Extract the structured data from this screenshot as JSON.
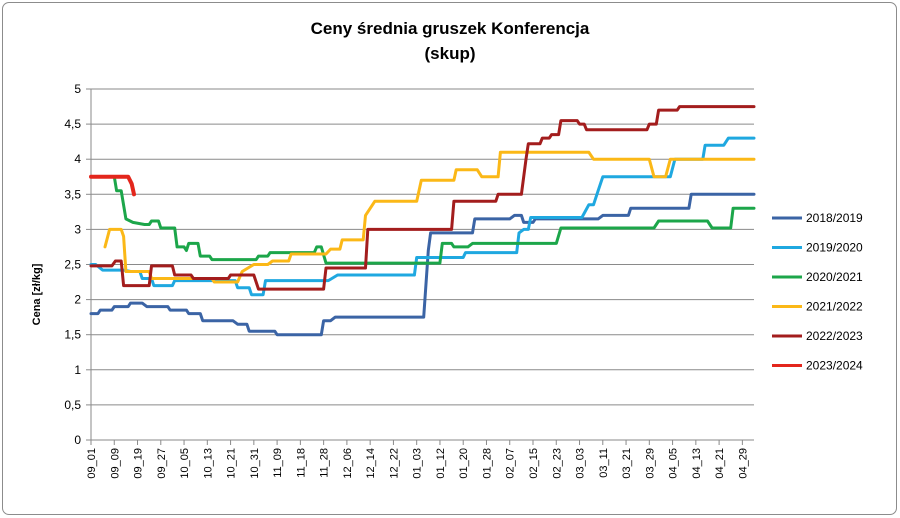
{
  "chart_data": {
    "type": "line",
    "title": "Ceny średnia gruszek Konferencja",
    "subtitle": "(skup)",
    "xlabel": "",
    "ylabel": "Cena [zł/kg]",
    "ylim": [
      0,
      5
    ],
    "y_ticks": [
      "0",
      "0,5",
      "1",
      "1,5",
      "2",
      "2,5",
      "3",
      "3,5",
      "4",
      "4,5",
      "5"
    ],
    "grid": "horizontal",
    "legend_position": "right",
    "categories": [
      "09_01",
      "09_09",
      "09_19",
      "09_27",
      "10_05",
      "10_13",
      "10_21",
      "10_31",
      "11_09",
      "11_18",
      "11_28",
      "12_06",
      "12_14",
      "12_22",
      "01_03",
      "01_12",
      "01_20",
      "01_28",
      "02_07",
      "02_15",
      "02_23",
      "03_03",
      "03_11",
      "03_21",
      "03_29",
      "04_05",
      "04_13",
      "04_21",
      "04_29"
    ],
    "series": [
      {
        "name": "2018/2019",
        "color": "#3b64a5",
        "width": 3,
        "points": [
          [
            0,
            1.8
          ],
          [
            0.3,
            1.8
          ],
          [
            0.4,
            1.85
          ],
          [
            0.9,
            1.85
          ],
          [
            1,
            1.9
          ],
          [
            1.6,
            1.9
          ],
          [
            1.7,
            1.95
          ],
          [
            2.2,
            1.95
          ],
          [
            2.4,
            1.9
          ],
          [
            3.3,
            1.9
          ],
          [
            3.4,
            1.85
          ],
          [
            4.1,
            1.85
          ],
          [
            4.2,
            1.8
          ],
          [
            4.7,
            1.8
          ],
          [
            4.8,
            1.7
          ],
          [
            6.1,
            1.7
          ],
          [
            6.3,
            1.65
          ],
          [
            6.7,
            1.65
          ],
          [
            6.8,
            1.55
          ],
          [
            7.9,
            1.55
          ],
          [
            8,
            1.5
          ],
          [
            9.9,
            1.5
          ],
          [
            10,
            1.7
          ],
          [
            10.3,
            1.7
          ],
          [
            10.5,
            1.75
          ],
          [
            14.3,
            1.75
          ],
          [
            14.5,
            2.7
          ],
          [
            14.6,
            2.95
          ],
          [
            16.4,
            2.95
          ],
          [
            16.5,
            3.15
          ],
          [
            18,
            3.15
          ],
          [
            18.2,
            3.2
          ],
          [
            18.5,
            3.2
          ],
          [
            18.6,
            3.1
          ],
          [
            19,
            3.1
          ],
          [
            19.1,
            3.15
          ],
          [
            21.8,
            3.15
          ],
          [
            22,
            3.2
          ],
          [
            23.1,
            3.2
          ],
          [
            23.2,
            3.3
          ],
          [
            25.7,
            3.3
          ],
          [
            25.8,
            3.5
          ],
          [
            28.5,
            3.5
          ]
        ]
      },
      {
        "name": "2019/2020",
        "color": "#1fa8e0",
        "width": 3,
        "points": [
          [
            0,
            2.5
          ],
          [
            0.2,
            2.5
          ],
          [
            0.5,
            2.42
          ],
          [
            1.4,
            2.42
          ],
          [
            1.7,
            2.4
          ],
          [
            2.1,
            2.4
          ],
          [
            2.2,
            2.3
          ],
          [
            2.6,
            2.3
          ],
          [
            2.7,
            2.2
          ],
          [
            3.5,
            2.2
          ],
          [
            3.6,
            2.27
          ],
          [
            6.2,
            2.27
          ],
          [
            6.3,
            2.17
          ],
          [
            6.8,
            2.17
          ],
          [
            6.9,
            2.07
          ],
          [
            7.4,
            2.07
          ],
          [
            7.5,
            2.27
          ],
          [
            10.2,
            2.27
          ],
          [
            10.6,
            2.35
          ],
          [
            13.9,
            2.35
          ],
          [
            14,
            2.6
          ],
          [
            16,
            2.6
          ],
          [
            16.1,
            2.67
          ],
          [
            18.3,
            2.67
          ],
          [
            18.4,
            2.95
          ],
          [
            18.6,
            3
          ],
          [
            18.8,
            3
          ],
          [
            18.9,
            3.17
          ],
          [
            21.1,
            3.17
          ],
          [
            21.4,
            3.35
          ],
          [
            21.6,
            3.35
          ],
          [
            21.8,
            3.55
          ],
          [
            22,
            3.75
          ],
          [
            24.9,
            3.75
          ],
          [
            25.1,
            4
          ],
          [
            26.3,
            4
          ],
          [
            26.4,
            4.2
          ],
          [
            27.2,
            4.2
          ],
          [
            27.4,
            4.3
          ],
          [
            28.5,
            4.3
          ]
        ]
      },
      {
        "name": "2020/2021",
        "color": "#1ca64a",
        "width": 3,
        "points": [
          [
            1,
            3.75
          ],
          [
            1.1,
            3.55
          ],
          [
            1.3,
            3.55
          ],
          [
            1.5,
            3.15
          ],
          [
            1.8,
            3.1
          ],
          [
            2.3,
            3.07
          ],
          [
            2.5,
            3.07
          ],
          [
            2.6,
            3.12
          ],
          [
            2.9,
            3.12
          ],
          [
            3,
            3.02
          ],
          [
            3.6,
            3.02
          ],
          [
            3.7,
            2.75
          ],
          [
            4,
            2.75
          ],
          [
            4.1,
            2.7
          ],
          [
            4.2,
            2.8
          ],
          [
            4.6,
            2.8
          ],
          [
            4.7,
            2.62
          ],
          [
            5.1,
            2.62
          ],
          [
            5.2,
            2.57
          ],
          [
            7.1,
            2.57
          ],
          [
            7.2,
            2.62
          ],
          [
            7.6,
            2.62
          ],
          [
            7.7,
            2.67
          ],
          [
            9.6,
            2.67
          ],
          [
            9.7,
            2.75
          ],
          [
            9.9,
            2.75
          ],
          [
            10.1,
            2.52
          ],
          [
            15,
            2.52
          ],
          [
            15.1,
            2.8
          ],
          [
            15.5,
            2.8
          ],
          [
            15.6,
            2.75
          ],
          [
            16.2,
            2.75
          ],
          [
            16.4,
            2.8
          ],
          [
            20,
            2.8
          ],
          [
            20.2,
            3.02
          ],
          [
            24.2,
            3.02
          ],
          [
            24.4,
            3.12
          ],
          [
            26.5,
            3.12
          ],
          [
            26.7,
            3.02
          ],
          [
            27.5,
            3.02
          ],
          [
            27.6,
            3.3
          ],
          [
            28.5,
            3.3
          ]
        ]
      },
      {
        "name": "2021/2022",
        "color": "#fbb817",
        "width": 3,
        "points": [
          [
            0.6,
            2.75
          ],
          [
            0.8,
            3
          ],
          [
            1.3,
            3
          ],
          [
            1.4,
            2.9
          ],
          [
            1.5,
            2.4
          ],
          [
            2.5,
            2.4
          ],
          [
            2.6,
            2.3
          ],
          [
            5.2,
            2.3
          ],
          [
            5.3,
            2.25
          ],
          [
            6.3,
            2.25
          ],
          [
            6.5,
            2.4
          ],
          [
            7,
            2.5
          ],
          [
            7.6,
            2.5
          ],
          [
            7.8,
            2.55
          ],
          [
            8.5,
            2.55
          ],
          [
            8.6,
            2.65
          ],
          [
            10.1,
            2.65
          ],
          [
            10.3,
            2.72
          ],
          [
            10.7,
            2.72
          ],
          [
            10.8,
            2.85
          ],
          [
            11.7,
            2.85
          ],
          [
            11.8,
            3.2
          ],
          [
            12,
            3.3
          ],
          [
            12.2,
            3.4
          ],
          [
            14,
            3.4
          ],
          [
            14.2,
            3.7
          ],
          [
            15.6,
            3.7
          ],
          [
            15.7,
            3.85
          ],
          [
            16.6,
            3.85
          ],
          [
            16.8,
            3.75
          ],
          [
            17.5,
            3.75
          ],
          [
            17.6,
            4.1
          ],
          [
            21.4,
            4.1
          ],
          [
            21.6,
            4
          ],
          [
            24,
            4
          ],
          [
            24.2,
            3.75
          ],
          [
            24.7,
            3.75
          ],
          [
            24.9,
            4
          ],
          [
            28.5,
            4
          ]
        ]
      },
      {
        "name": "2022/2023",
        "color": "#a31d1d",
        "width": 3,
        "points": [
          [
            0,
            2.48
          ],
          [
            0.9,
            2.48
          ],
          [
            1.05,
            2.55
          ],
          [
            1.3,
            2.55
          ],
          [
            1.4,
            2.2
          ],
          [
            2.5,
            2.2
          ],
          [
            2.6,
            2.48
          ],
          [
            3.5,
            2.48
          ],
          [
            3.6,
            2.35
          ],
          [
            4.3,
            2.35
          ],
          [
            4.4,
            2.3
          ],
          [
            5.9,
            2.3
          ],
          [
            6,
            2.35
          ],
          [
            7,
            2.35
          ],
          [
            7.2,
            2.15
          ],
          [
            10,
            2.15
          ],
          [
            10.1,
            2.45
          ],
          [
            11.8,
            2.45
          ],
          [
            11.9,
            3
          ],
          [
            15.5,
            3
          ],
          [
            15.6,
            3.4
          ],
          [
            17.4,
            3.4
          ],
          [
            17.5,
            3.5
          ],
          [
            18.5,
            3.5
          ],
          [
            18.6,
            3.75
          ],
          [
            18.7,
            4
          ],
          [
            18.8,
            4.22
          ],
          [
            19.3,
            4.22
          ],
          [
            19.4,
            4.3
          ],
          [
            19.7,
            4.3
          ],
          [
            19.8,
            4.35
          ],
          [
            20.1,
            4.35
          ],
          [
            20.2,
            4.55
          ],
          [
            20.9,
            4.55
          ],
          [
            21,
            4.5
          ],
          [
            21.2,
            4.5
          ],
          [
            21.3,
            4.42
          ],
          [
            23.9,
            4.42
          ],
          [
            24,
            4.5
          ],
          [
            24.3,
            4.5
          ],
          [
            24.4,
            4.7
          ],
          [
            25.2,
            4.7
          ],
          [
            25.3,
            4.75
          ],
          [
            28.5,
            4.75
          ]
        ]
      },
      {
        "name": "2023/2024",
        "color": "#e3261c",
        "width": 4,
        "points": [
          [
            0,
            3.75
          ],
          [
            1.6,
            3.75
          ],
          [
            1.75,
            3.65
          ],
          [
            1.85,
            3.5
          ]
        ]
      }
    ]
  }
}
